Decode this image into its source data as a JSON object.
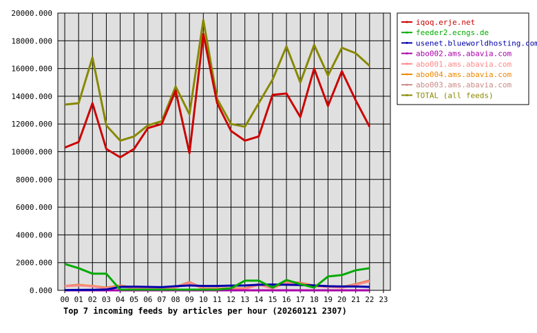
{
  "chart_data": {
    "type": "line",
    "title": "Top 7 incoming feeds by articles per hour (20260121 2307)",
    "xlabel": "",
    "ylabel": "",
    "grid": true,
    "legend_position": "top-right",
    "ylim": [
      0,
      20000
    ],
    "yticks": [
      "0.000",
      "2000.000",
      "4000.000",
      "6000.000",
      "8000.000",
      "10000.000",
      "12000.000",
      "14000.000",
      "16000.000",
      "18000.000",
      "20000.000"
    ],
    "categories": [
      "00",
      "01",
      "02",
      "03",
      "04",
      "05",
      "06",
      "07",
      "08",
      "09",
      "10",
      "11",
      "12",
      "13",
      "14",
      "15",
      "16",
      "17",
      "18",
      "19",
      "20",
      "21",
      "22",
      "23"
    ],
    "series": [
      {
        "name": "iqoq.erje.net",
        "color": "#cc0000",
        "values": [
          10300,
          10700,
          13500,
          10200,
          9600,
          10200,
          11700,
          12000,
          14400,
          9900,
          18500,
          13500,
          11500,
          10800,
          11100,
          14100,
          14200,
          12500,
          16000,
          13300,
          15800,
          13700,
          11800,
          null
        ]
      },
      {
        "name": "feeder2.ecngs.de",
        "color": "#00aa00",
        "values": [
          1900,
          1600,
          1200,
          1200,
          50,
          50,
          50,
          50,
          50,
          50,
          50,
          50,
          150,
          700,
          700,
          200,
          750,
          450,
          200,
          1000,
          1100,
          1450,
          1600,
          null
        ]
      },
      {
        "name": "usenet.blueworldhosting.com",
        "color": "#0000aa",
        "values": [
          20,
          30,
          40,
          60,
          250,
          270,
          250,
          230,
          300,
          350,
          320,
          320,
          340,
          350,
          400,
          420,
          400,
          380,
          350,
          300,
          280,
          280,
          250,
          null
        ]
      },
      {
        "name": "abo002.ams.abavia.com",
        "color": "#aa00aa",
        "values": [
          0,
          0,
          0,
          0,
          0,
          0,
          0,
          0,
          0,
          0,
          0,
          0,
          0,
          0,
          0,
          0,
          0,
          0,
          0,
          0,
          0,
          0,
          0,
          null
        ]
      },
      {
        "name": "abo001.ams.abavia.com",
        "color": "#ff8888",
        "values": [
          300,
          350,
          300,
          150,
          300,
          150,
          100,
          100,
          200,
          550,
          100,
          100,
          100,
          100,
          400,
          150,
          550,
          500,
          300,
          250,
          200,
          400,
          650,
          null
        ]
      },
      {
        "name": "abo004.ams.abavia.com",
        "color": "#ee8800",
        "values": [
          300,
          380,
          320,
          180,
          320,
          170,
          120,
          120,
          220,
          560,
          120,
          120,
          120,
          120,
          420,
          170,
          570,
          520,
          320,
          270,
          220,
          420,
          680,
          null
        ]
      },
      {
        "name": "abo003.ams.abavia.com",
        "color": "#cc8888",
        "values": [
          320,
          400,
          300,
          200,
          350,
          200,
          150,
          150,
          250,
          600,
          150,
          150,
          150,
          150,
          450,
          200,
          600,
          550,
          350,
          300,
          250,
          450,
          720,
          null
        ]
      },
      {
        "name": "TOTAL (all feeds)",
        "color": "#888800",
        "values": [
          13400,
          13500,
          16800,
          11900,
          10800,
          11100,
          11900,
          12200,
          14700,
          12700,
          19500,
          13800,
          12000,
          11800,
          13500,
          15200,
          17600,
          15000,
          17700,
          15500,
          17500,
          17100,
          16200,
          null
        ]
      }
    ]
  }
}
